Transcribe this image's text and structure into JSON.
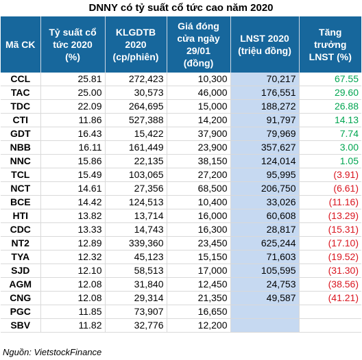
{
  "title": "DNNY có tỷ suất cổ tức cao năm 2020",
  "headers": [
    [
      "Mã CK"
    ],
    [
      "Tỷ suất cổ",
      "tức 2020",
      "(%)"
    ],
    [
      "KLGDTB",
      "2020",
      "(cp/phiên)"
    ],
    [
      "Giá đóng",
      "cửa ngày",
      "29/01",
      "(đồng)"
    ],
    [
      "LNST 2020",
      "(triệu đồng)"
    ],
    [
      "Tăng",
      "trưởng",
      "LNST (%)"
    ]
  ],
  "rows": [
    {
      "code": "CCL",
      "yield": "25.81",
      "volume": "272,423",
      "price": "10,300",
      "profit": "70,217",
      "growth": "67.55",
      "sign": "pos"
    },
    {
      "code": "TAC",
      "yield": "25.00",
      "volume": "30,573",
      "price": "46,000",
      "profit": "176,551",
      "growth": "29.60",
      "sign": "pos"
    },
    {
      "code": "TDC",
      "yield": "22.09",
      "volume": "264,695",
      "price": "15,000",
      "profit": "188,272",
      "growth": "26.88",
      "sign": "pos"
    },
    {
      "code": "CTI",
      "yield": "11.86",
      "volume": "527,388",
      "price": "14,200",
      "profit": "91,797",
      "growth": "14.13",
      "sign": "pos"
    },
    {
      "code": "GDT",
      "yield": "16.43",
      "volume": "15,422",
      "price": "37,900",
      "profit": "79,969",
      "growth": "7.74",
      "sign": "pos"
    },
    {
      "code": "NBB",
      "yield": "16.11",
      "volume": "161,449",
      "price": "23,900",
      "profit": "357,627",
      "growth": "3.00",
      "sign": "pos"
    },
    {
      "code": "NNC",
      "yield": "15.86",
      "volume": "22,135",
      "price": "38,150",
      "profit": "124,014",
      "growth": "1.05",
      "sign": "pos"
    },
    {
      "code": "TCL",
      "yield": "15.49",
      "volume": "103,065",
      "price": "27,200",
      "profit": "95,995",
      "growth": "(3.91)",
      "sign": "neg"
    },
    {
      "code": "NCT",
      "yield": "14.61",
      "volume": "27,356",
      "price": "68,500",
      "profit": "206,750",
      "growth": "(6.61)",
      "sign": "neg"
    },
    {
      "code": "BCE",
      "yield": "14.42",
      "volume": "124,513",
      "price": "10,400",
      "profit": "33,026",
      "growth": "(11.16)",
      "sign": "neg"
    },
    {
      "code": "HTI",
      "yield": "13.82",
      "volume": "13,714",
      "price": "16,000",
      "profit": "60,608",
      "growth": "(13.29)",
      "sign": "neg"
    },
    {
      "code": "CDC",
      "yield": "13.33",
      "volume": "14,743",
      "price": "16,300",
      "profit": "28,817",
      "growth": "(15.31)",
      "sign": "neg"
    },
    {
      "code": "NT2",
      "yield": "12.89",
      "volume": "339,360",
      "price": "23,450",
      "profit": "625,244",
      "growth": "(17.10)",
      "sign": "neg"
    },
    {
      "code": "TYA",
      "yield": "12.32",
      "volume": "45,123",
      "price": "15,150",
      "profit": "71,603",
      "growth": "(19.52)",
      "sign": "neg"
    },
    {
      "code": "SJD",
      "yield": "12.10",
      "volume": "58,513",
      "price": "17,000",
      "profit": "105,595",
      "growth": "(31.30)",
      "sign": "neg"
    },
    {
      "code": "AGM",
      "yield": "12.08",
      "volume": "31,840",
      "price": "12,450",
      "profit": "24,753",
      "growth": "(38.56)",
      "sign": "neg"
    },
    {
      "code": "CNG",
      "yield": "12.08",
      "volume": "29,314",
      "price": "21,350",
      "profit": "49,587",
      "growth": "(41.21)",
      "sign": "neg"
    },
    {
      "code": "PGC",
      "yield": "11.85",
      "volume": "73,907",
      "price": "16,650",
      "profit": "",
      "growth": "",
      "sign": ""
    },
    {
      "code": "SBV",
      "yield": "11.82",
      "volume": "32,776",
      "price": "12,200",
      "profit": "",
      "growth": "",
      "sign": ""
    }
  ],
  "source": "Nguồn: VietstockFinance",
  "colors": {
    "header_bg": "#17679c",
    "profit_col_bg": "#c6d9f1",
    "positive": "#00a550",
    "negative": "#d9141e"
  }
}
